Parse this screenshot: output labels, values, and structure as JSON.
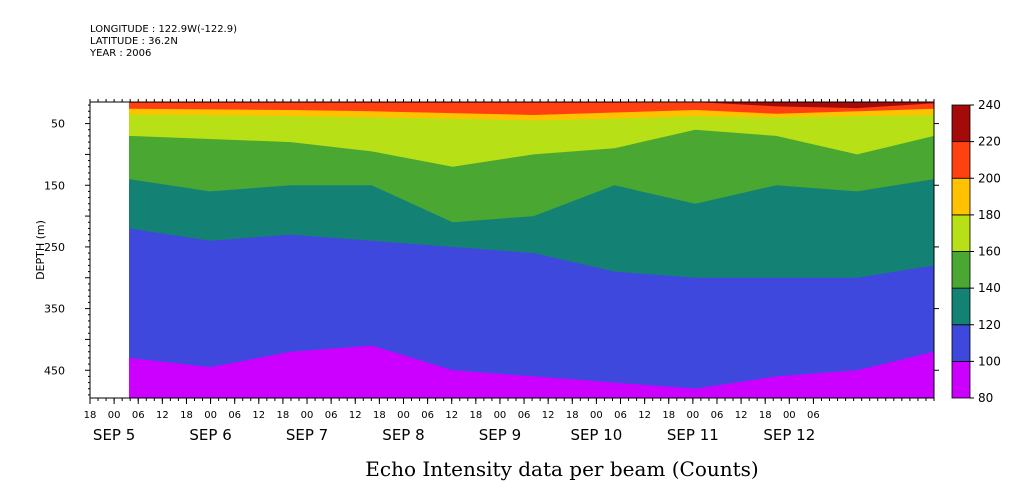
{
  "header": {
    "longitude": "LONGITUDE : 122.9W(-122.9)",
    "latitude": "LATITUDE : 36.2N",
    "year": "YEAR : 2006"
  },
  "chart_data": {
    "type": "heatmap",
    "title": "Echo Intensity data per beam (Counts)",
    "ylabel": "DEPTH (m)",
    "xlabel": "",
    "depth_range": [
      15,
      495
    ],
    "y_ticks": [
      50,
      150,
      250,
      350,
      450
    ],
    "time_range_hours": [
      -6,
      204
    ],
    "data_start_hour": 0,
    "x_hour_labels": [
      "18",
      "00",
      "06",
      "12",
      "18",
      "00",
      "06",
      "12",
      "18",
      "00",
      "06",
      "12",
      "18",
      "00",
      "06",
      "12",
      "18",
      "00",
      "06",
      "12",
      "18",
      "00",
      "06",
      "12",
      "18",
      "00",
      "06",
      "12",
      "18",
      "00",
      "06"
    ],
    "x_date_labels": [
      {
        "label": "SEP 5",
        "hour": 0
      },
      {
        "label": "SEP 6",
        "hour": 24
      },
      {
        "label": "SEP 7",
        "hour": 48
      },
      {
        "label": "SEP 8",
        "hour": 72
      },
      {
        "label": "SEP 9",
        "hour": 96
      },
      {
        "label": "SEP 10",
        "hour": 120
      },
      {
        "label": "SEP 11",
        "hour": 144
      },
      {
        "label": "SEP 12",
        "hour": 168
      }
    ],
    "colorbar": {
      "levels": [
        80,
        100,
        120,
        140,
        160,
        180,
        200,
        220,
        240
      ],
      "colors": [
        "#cc00ff",
        "#3f48dd",
        "#138274",
        "#4aa832",
        "#b8e016",
        "#ffc200",
        "#ff4010",
        "#a50a0a"
      ]
    },
    "boundaries": [
      {
        "between": "220-240 / 200-220",
        "hours": [
          0,
          20,
          40,
          60,
          80,
          100,
          120,
          140,
          160,
          180,
          199
        ],
        "depths": [
          16,
          16,
          16,
          16,
          16,
          16,
          16,
          15,
          22,
          25,
          17
        ]
      },
      {
        "between": "200-220 / 180-200",
        "hours": [
          0,
          20,
          40,
          60,
          80,
          100,
          120,
          140,
          160,
          180,
          199
        ],
        "depths": [
          26,
          27,
          28,
          30,
          33,
          36,
          32,
          28,
          34,
          30,
          26
        ]
      },
      {
        "between": "180-200 / 160-180",
        "hours": [
          0,
          20,
          40,
          60,
          80,
          100,
          120,
          140,
          160,
          180,
          199
        ],
        "depths": [
          35,
          36,
          38,
          40,
          42,
          45,
          42,
          38,
          40,
          38,
          36
        ]
      },
      {
        "between": "160-180 / 140-160",
        "hours": [
          0,
          20,
          40,
          60,
          80,
          100,
          120,
          140,
          160,
          180,
          199
        ],
        "depths": [
          70,
          75,
          80,
          95,
          120,
          100,
          90,
          60,
          70,
          100,
          70
        ]
      },
      {
        "between": "140-160 / 120-140",
        "hours": [
          0,
          20,
          40,
          60,
          80,
          100,
          120,
          140,
          160,
          180,
          199
        ],
        "depths": [
          140,
          160,
          150,
          150,
          210,
          200,
          150,
          180,
          150,
          160,
          140
        ]
      },
      {
        "between": "120-140 / 100-120",
        "hours": [
          0,
          20,
          40,
          60,
          80,
          100,
          120,
          140,
          160,
          180,
          199
        ],
        "depths": [
          220,
          240,
          230,
          240,
          250,
          260,
          290,
          300,
          300,
          300,
          280
        ]
      },
      {
        "between": "100-120 / 80-100",
        "hours": [
          0,
          20,
          40,
          60,
          80,
          100,
          120,
          140,
          160,
          180,
          199
        ],
        "depths": [
          430,
          445,
          420,
          410,
          450,
          460,
          470,
          480,
          460,
          450,
          420
        ]
      }
    ]
  }
}
